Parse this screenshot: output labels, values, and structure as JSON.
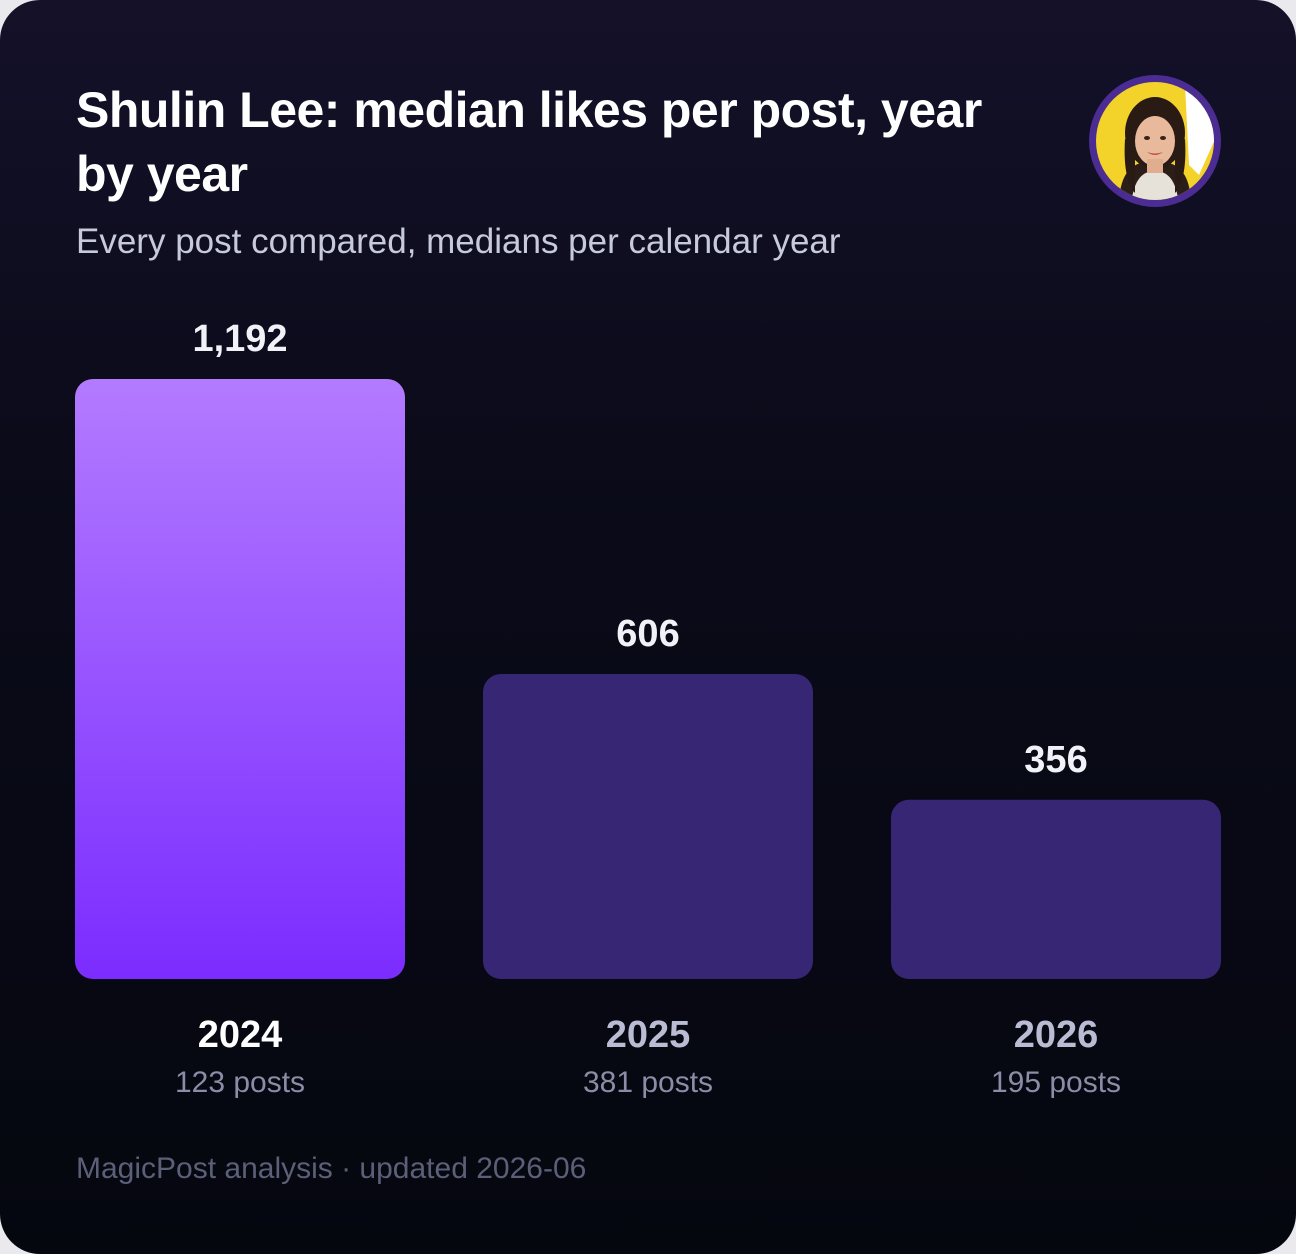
{
  "header": {
    "title": "Shulin Lee: median likes per post, year by year",
    "subtitle": "Every post compared, medians per calendar year"
  },
  "footer": {
    "text": "MagicPost analysis · updated 2026-06"
  },
  "colors": {
    "highlight_top": "#b37bff",
    "highlight_bottom": "#7b2cff",
    "bar_muted": "#372673",
    "value_label": "#f1f2f8",
    "year_highlight": "#ffffff",
    "year_muted": "#b9bcd3",
    "posts_label": "#8a8da6",
    "avatar_ring": "#4b2c92",
    "avatar_bg": "#f3d22a"
  },
  "chart_data": {
    "type": "bar",
    "categories": [
      "2024",
      "2025",
      "2026"
    ],
    "values": [
      1192,
      606,
      356
    ],
    "value_labels": [
      "1,192",
      "606",
      "356"
    ],
    "sublabels": [
      "123 posts",
      "381 posts",
      "195 posts"
    ],
    "highlight_index": 0,
    "ylim": [
      0,
      1192
    ],
    "grid": false,
    "legend": "none"
  }
}
